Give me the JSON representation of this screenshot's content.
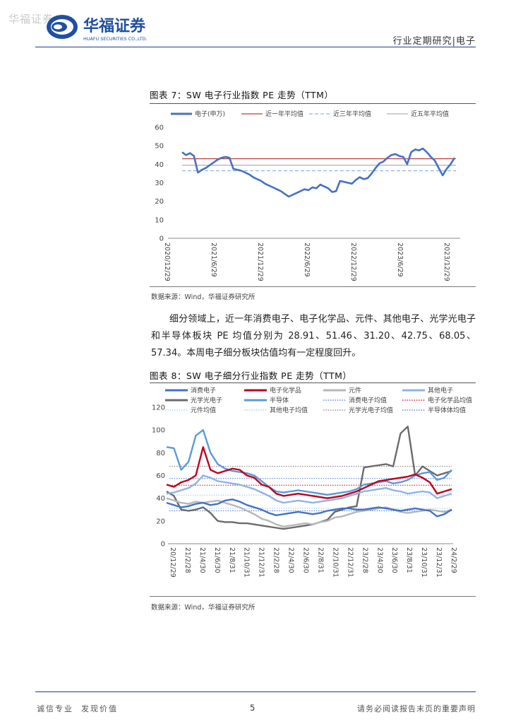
{
  "header": {
    "watermark": "华福证券",
    "logo_cn": "华福证券",
    "logo_en": "HUAFU SECURITIES CO.,LTD.",
    "report_type": "行业定期研究|电子"
  },
  "figure7": {
    "title": "图表 7：SW 电子行业指数 PE 走势（TTM）",
    "source": "数据来源：Wind，华福证券研究所",
    "colors": {
      "main": "#4472c4",
      "one_year": "#c0393b",
      "three_year": "#8eb4e3",
      "five_year": "#b0b0b0"
    }
  },
  "figure8": {
    "title": "图表 8：SW 电子细分行业指数 PE 走势（TTM）",
    "source": "数据来源：Wind，华福证券研究所"
  },
  "body": {
    "paragraph": "细分领域上，近一年消费电子、电子化学品、元件、其他电子、光学光电子和半导体板块 PE 均值分别为 28.91、51.46、31.20、42.75、68.05、57.34。本周电子细分板块估值均有一定程度回升。"
  },
  "footer": {
    "left": "诚信专业  发现价值",
    "page": "5",
    "right": "请务必阅读报告末页的重要声明"
  },
  "chart_data": [
    {
      "type": "line",
      "title": "SW 电子行业指数 PE 走势（TTM）",
      "ylim": [
        0,
        60
      ],
      "yticks": [
        "0",
        "10",
        "20",
        "30",
        "40",
        "50",
        "60"
      ],
      "xticks": [
        "2020/12/29",
        "2021/6/29",
        "2021/12/29",
        "2022/6/29",
        "2022/12/29",
        "2023/6/29",
        "2023/12/29"
      ],
      "series": [
        {
          "name": "电子(申万)",
          "color": "#4472c4",
          "values": [
            46.5,
            45,
            46,
            44.5,
            35.5,
            37,
            38,
            39.5,
            41,
            42.5,
            43.5,
            44,
            43.5,
            37.5,
            37,
            36.5,
            35.5,
            34.5,
            33,
            32,
            31,
            29.5,
            28.5,
            27.5,
            26.5,
            25.5,
            24,
            22.5,
            23.5,
            24.5,
            25.5,
            26.5,
            26,
            27.5,
            27,
            29,
            28,
            27,
            25,
            25.5,
            31,
            30.5,
            30,
            29.5,
            31.5,
            33,
            32,
            32.5,
            35,
            38,
            40.5,
            41.5,
            43.5,
            45,
            45.5,
            44.5,
            44,
            40,
            46.5,
            48,
            47.5,
            48.5,
            46.5,
            44,
            42,
            38,
            34,
            37.5,
            40,
            43.5
          ]
        },
        {
          "name": "近一年平均值",
          "color": "#c0393b",
          "values": [
            43,
            43
          ]
        },
        {
          "name": "近三年平均值",
          "color": "#8eb4e3",
          "values": [
            36.5,
            36.5
          ]
        },
        {
          "name": "近五年平均值",
          "color": "#b0b0b0",
          "values": [
            39.5,
            39.5
          ]
        }
      ]
    },
    {
      "type": "line",
      "title": "SW 电子细分行业指数 PE 走势（TTM）",
      "ylim": [
        0,
        120
      ],
      "yticks": [
        "0",
        "20",
        "40",
        "60",
        "80",
        "100",
        "120"
      ],
      "xticks": [
        "20/12/29",
        "21/2/28",
        "21/4/30",
        "21/6/30",
        "21/8/31",
        "21/10/31",
        "21/12/31",
        "22/2/28",
        "22/4/30",
        "22/6/30",
        "22/8/31",
        "22/10/31",
        "22/12/31",
        "23/2/28",
        "23/4/30",
        "23/6/30",
        "23/8/31",
        "23/10/31",
        "23/12/31",
        "24/2/29"
      ],
      "series": [
        {
          "name": "消费电子",
          "color": "#4472c4",
          "values": [
            36,
            34,
            32,
            33,
            35,
            36,
            34,
            35,
            38,
            39,
            37,
            34,
            32,
            30,
            27,
            25,
            26,
            27,
            28,
            27,
            26,
            27,
            29,
            30,
            31,
            31,
            30,
            30,
            31,
            32,
            31,
            30,
            29,
            30,
            31,
            30,
            29,
            24,
            26,
            30
          ]
        },
        {
          "name": "电子化学品",
          "color": "#c0001d",
          "values": [
            52,
            50,
            54,
            56,
            60,
            85,
            65,
            62,
            64,
            66,
            65,
            60,
            58,
            52,
            50,
            44,
            42,
            43,
            44,
            43,
            42,
            41,
            40,
            41,
            42,
            44,
            46,
            49,
            52,
            55,
            56,
            57,
            58,
            59,
            61,
            58,
            54,
            44,
            46,
            48
          ]
        },
        {
          "name": "元件",
          "color": "#b7b7b7",
          "values": [
            40,
            38,
            36,
            35,
            37,
            36,
            37,
            38,
            36,
            34,
            32,
            29,
            26,
            22,
            20,
            17,
            15,
            16,
            17,
            18,
            17,
            19,
            20,
            23,
            24,
            26,
            28,
            29,
            30,
            31,
            32,
            30,
            28,
            27,
            28,
            29,
            30,
            29,
            28,
            30
          ]
        },
        {
          "name": "其他电子",
          "color": "#8eb4e3",
          "values": [
            44,
            45,
            47,
            49,
            53,
            60,
            58,
            55,
            54,
            53,
            52,
            50,
            48,
            45,
            42,
            38,
            36,
            37,
            38,
            37,
            36,
            37,
            38,
            39,
            40,
            42,
            44,
            46,
            47,
            48,
            49,
            47,
            46,
            44,
            45,
            46,
            45,
            40,
            42,
            44
          ]
        },
        {
          "name": "光学光电子",
          "color": "#6b6b6b",
          "values": [
            46,
            42,
            30,
            29,
            30,
            32,
            27,
            20,
            19,
            19,
            18,
            18,
            17,
            16,
            15,
            14,
            13,
            14,
            15,
            16,
            17,
            19,
            21,
            28,
            30,
            32,
            33,
            67,
            68,
            69,
            70,
            68,
            97,
            103,
            60,
            68,
            64,
            60,
            62,
            64
          ]
        },
        {
          "name": "半导体",
          "color": "#5b9bd5",
          "values": [
            85,
            84,
            65,
            72,
            95,
            100,
            80,
            70,
            66,
            64,
            63,
            62,
            60,
            55,
            50,
            46,
            45,
            46,
            47,
            46,
            45,
            44,
            43,
            44,
            45,
            46,
            48,
            52,
            53,
            54,
            55,
            53,
            54,
            56,
            60,
            62,
            63,
            56,
            58,
            65
          ]
        },
        {
          "name": "消费电子均值",
          "color": "#4472c4",
          "values": [
            28.91,
            28.91
          ]
        },
        {
          "name": "电子化学品均值",
          "color": "#c0001d",
          "values": [
            51.46,
            51.46
          ]
        },
        {
          "name": "元件均值",
          "color": "#9dc3e6",
          "values": [
            31.2,
            31.2
          ]
        },
        {
          "name": "其他电子均值",
          "color": "#9dc3e6",
          "values": [
            42.75,
            42.75
          ]
        },
        {
          "name": "光学光电子均值",
          "color": "#7f7f7f",
          "values": [
            68.05,
            68.05
          ]
        },
        {
          "name": "半导体体均值",
          "color": "#4472c4",
          "values": [
            57.34,
            57.34
          ]
        }
      ],
      "legend": [
        {
          "label": "消费电子",
          "color": "#4472c4",
          "style": "solid"
        },
        {
          "label": "电子化学品",
          "color": "#c0001d",
          "style": "solid"
        },
        {
          "label": "元件",
          "color": "#b7b7b7",
          "style": "solid"
        },
        {
          "label": "其他电子",
          "color": "#8eb4e3",
          "style": "solid"
        },
        {
          "label": "光学光电子",
          "color": "#6b6b6b",
          "style": "solid"
        },
        {
          "label": "半导体",
          "color": "#5b9bd5",
          "style": "solid"
        },
        {
          "label": "消费电子均值",
          "color": "#4472c4",
          "style": "dotted"
        },
        {
          "label": "电子化学品均值",
          "color": "#c0001d",
          "style": "dotted"
        },
        {
          "label": "元件均值",
          "color": "#9dc3e6",
          "style": "dotted"
        },
        {
          "label": "其他电子均值",
          "color": "#9dc3e6",
          "style": "dotted"
        },
        {
          "label": "光学光电子均值",
          "color": "#7f7f7f",
          "style": "dotted"
        },
        {
          "label": "半导体体均值",
          "color": "#4472c4",
          "style": "dotted"
        }
      ]
    }
  ]
}
